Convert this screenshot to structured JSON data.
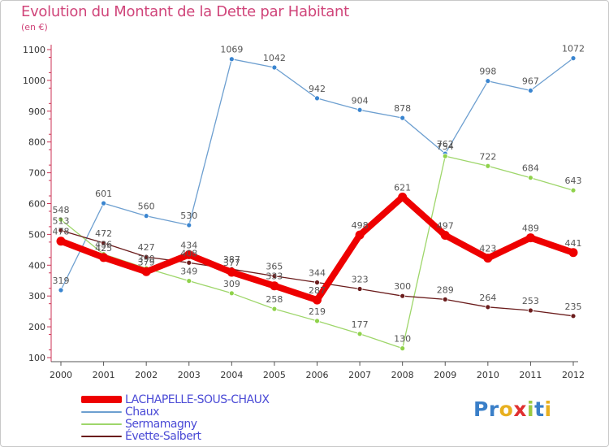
{
  "title": "Evolution du Montant de la Dette par Habitant",
  "subtitle": "(en €)",
  "chart_data": {
    "type": "line",
    "x": [
      "2000",
      "2001",
      "2002",
      "2003",
      "2004",
      "2005",
      "2006",
      "2007",
      "2008",
      "2009",
      "2010",
      "2011",
      "2012"
    ],
    "ylim": [
      100,
      1100
    ],
    "yticks": [
      "100",
      "200",
      "300",
      "400",
      "500",
      "600",
      "700",
      "800",
      "900",
      "1000",
      "1100"
    ],
    "grid": false,
    "legend_position": "bottom-left",
    "series": [
      {
        "name": "LACHAPELLE-SOUS-CHAUX",
        "color": "#ee0000",
        "values": [
          478,
          425,
          379,
          434,
          377,
          333,
          287,
          498,
          621,
          497,
          423,
          489,
          441
        ],
        "labels": [
          "478",
          "425",
          "379",
          "434",
          "377",
          "333",
          "287",
          "498",
          "621",
          "497",
          "423",
          "489",
          "441"
        ]
      },
      {
        "name": "Chaux",
        "color": "#6d9fd0",
        "values": [
          319,
          601,
          560,
          530,
          1069,
          1042,
          942,
          904,
          878,
          762,
          998,
          967,
          1072
        ],
        "labels": [
          "319",
          "601",
          "560",
          "530",
          "1069",
          "1042",
          "942",
          "904",
          "878",
          "762",
          "998",
          "967",
          "1072"
        ]
      },
      {
        "name": "Sermamagny",
        "color": "#9ed66a",
        "values": [
          548,
          436,
          390,
          349,
          309,
          258,
          219,
          177,
          130,
          754,
          722,
          684,
          643
        ],
        "labels": [
          "548",
          "436",
          "390",
          "349",
          "309",
          "258",
          "219",
          "177",
          "130",
          "754",
          "722",
          "684",
          "643"
        ]
      },
      {
        "name": "Évette-Salbert",
        "color": "#6b1c1c",
        "values": [
          513,
          472,
          427,
          408,
          387,
          365,
          344,
          323,
          300,
          289,
          264,
          253,
          235
        ],
        "labels": [
          "513",
          "472",
          "427",
          "408",
          "387",
          "365",
          "344",
          "323",
          "300",
          "289",
          "264",
          "253",
          "235"
        ]
      }
    ]
  },
  "logo": {
    "text": "Proxiti",
    "letter_colors": [
      "#3a7fc8",
      "#3a7fc8",
      "#e8b020",
      "#e03030",
      "#9bc940",
      "#3a7fc8",
      "#e8b020"
    ]
  }
}
